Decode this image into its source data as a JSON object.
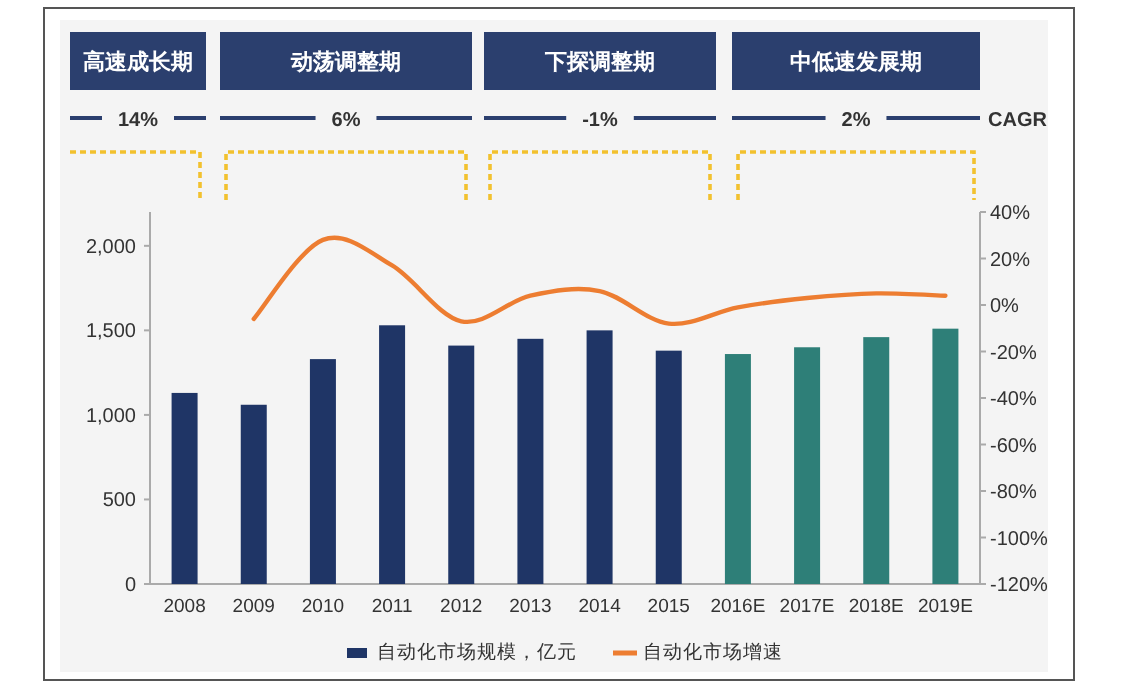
{
  "chart_data": {
    "type": "bar",
    "annotations": [
      "高速成长期",
      "14%",
      "动荡调整期",
      "6%",
      "下探调整期",
      "-1%",
      "中低速发展期",
      "2%",
      "CAGR"
    ],
    "categories": [
      "2008",
      "2009",
      "2010",
      "2011",
      "2012",
      "2013",
      "2014",
      "2015",
      "2016E",
      "2017E",
      "2018E",
      "2019E"
    ],
    "series": [
      {
        "name": "自动化市场规模，亿元",
        "color": "#1f3566",
        "colors": [
          "#1f3566",
          "#1f3566",
          "#1f3566",
          "#1f3566",
          "#1f3566",
          "#1f3566",
          "#1f3566",
          "#1f3566",
          "#2e7f78",
          "#2e7f78",
          "#2e7f78",
          "#2e7f78"
        ],
        "values": [
          1130,
          1060,
          1330,
          1530,
          1410,
          1450,
          1500,
          1380,
          1360,
          1400,
          1460,
          1510
        ]
      },
      {
        "name": "自动化市场增速",
        "type": "line",
        "axis": "y2",
        "color": "#ed7d31",
        "values": [
          null,
          -6,
          28,
          17,
          -7,
          4,
          6,
          -8,
          -1,
          3,
          5,
          4
        ]
      }
    ],
    "ylim": [
      0,
      2200
    ],
    "yticks": [
      0,
      500,
      {
        "value": 1000,
        "label": "1,000"
      },
      {
        "value": 1500,
        "label": "1,500"
      },
      {
        "value": 2000,
        "label": "2,000"
      }
    ],
    "y2lim": [
      -120,
      40
    ],
    "y2ticks": [
      {
        "value": 40,
        "label": "40%"
      },
      {
        "value": 20,
        "label": "20%"
      },
      {
        "value": 0,
        "label": "0%"
      },
      {
        "value": -20,
        "label": "-20%"
      },
      {
        "value": -40,
        "label": "-40%"
      },
      {
        "value": -60,
        "label": "-60%"
      },
      {
        "value": -80,
        "label": "-80%"
      },
      {
        "value": -100,
        "label": "-100%"
      },
      {
        "value": -120,
        "label": "-120%"
      }
    ],
    "legend": "bottom"
  }
}
